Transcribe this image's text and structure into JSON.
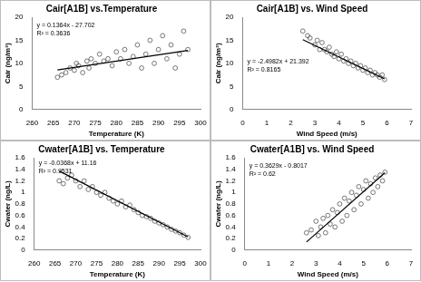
{
  "chart_data": [
    {
      "type": "scatter",
      "title": "Cair[A1B] vs.Temperature",
      "x_label": "Temperature (K)",
      "y_label": "Cair (ng/m³)",
      "annotations": [
        "y = 0.1364x - 27.702",
        "R² = 0.3636"
      ],
      "xlim": [
        260,
        300
      ],
      "xticks": [
        260,
        265,
        270,
        275,
        280,
        285,
        290,
        295,
        300
      ],
      "ylim": [
        0,
        20
      ],
      "yticks": [
        0,
        5,
        10,
        15,
        20
      ],
      "grid": false,
      "series": [
        {
          "type": "scatter",
          "marker": "circle",
          "color": "#555555",
          "x": [
            266,
            267,
            268,
            269,
            270,
            270.5,
            271,
            272,
            273,
            273.5,
            274,
            275,
            276,
            277,
            278,
            279,
            280,
            281,
            282,
            283,
            284,
            285,
            286,
            287,
            288,
            289,
            290,
            291,
            292,
            293,
            294,
            295,
            296,
            297
          ],
          "values": [
            7,
            7.5,
            8,
            9,
            8.5,
            10,
            9.5,
            8,
            10.5,
            9,
            11,
            10,
            12,
            10.5,
            11,
            9.5,
            12.5,
            11,
            13,
            10,
            11.5,
            14,
            9,
            12,
            15,
            10,
            13,
            16,
            11,
            14,
            9,
            12,
            17,
            13
          ]
        },
        {
          "type": "line",
          "line_style": "solid",
          "color": "#000000",
          "x": [
            266,
            297
          ],
          "values": [
            8.58,
            12.81
          ]
        }
      ]
    },
    {
      "type": "scatter",
      "title": "Cair[A1B] vs. Wind Speed",
      "x_label": "Wind Speed (m/s)",
      "y_label": "Cair (ng/m³)",
      "annotations": [
        "y = -2.4982x + 21.392",
        "R² = 0.8165"
      ],
      "xlim": [
        0,
        7
      ],
      "xticks": [
        0,
        1,
        2,
        3,
        4,
        5,
        6,
        7
      ],
      "ylim": [
        0,
        20
      ],
      "yticks": [
        0,
        5,
        10,
        15,
        20
      ],
      "grid": false,
      "series": [
        {
          "type": "scatter",
          "marker": "circle",
          "color": "#555555",
          "x": [
            2.5,
            2.7,
            2.8,
            3.0,
            3.1,
            3.2,
            3.3,
            3.4,
            3.5,
            3.6,
            3.7,
            3.8,
            3.9,
            4.0,
            4.1,
            4.2,
            4.3,
            4.4,
            4.5,
            4.6,
            4.7,
            4.8,
            4.9,
            5.0,
            5.1,
            5.2,
            5.3,
            5.4,
            5.5,
            5.6,
            5.7,
            5.8,
            5.9
          ],
          "values": [
            17,
            16,
            15.5,
            14,
            15,
            13,
            14.5,
            13,
            12.5,
            13.5,
            12,
            11.5,
            12.5,
            11,
            12,
            10.5,
            11,
            10,
            10.5,
            9.5,
            10,
            9,
            9.5,
            8.5,
            9,
            8,
            8.5,
            7.5,
            8,
            7.5,
            7,
            7.5,
            6.5
          ]
        },
        {
          "type": "line",
          "line_style": "solid",
          "color": "#000000",
          "x": [
            2.5,
            5.9
          ],
          "values": [
            15.15,
            6.65
          ]
        }
      ]
    },
    {
      "type": "scatter",
      "title": "Cwater[A1B] vs. Temperature",
      "x_label": "Temperature (K)",
      "y_label": "Cwater (ng/L)",
      "annotations": [
        "y = -0.0368x + 11.16",
        "R² = 0.9531"
      ],
      "xlim": [
        260,
        300
      ],
      "xticks": [
        260,
        265,
        270,
        275,
        280,
        285,
        290,
        295,
        300
      ],
      "ylim": [
        0,
        1.6
      ],
      "yticks": [
        0,
        0.2,
        0.4,
        0.6,
        0.8,
        1,
        1.2,
        1.4,
        1.6
      ],
      "grid": false,
      "series": [
        {
          "type": "scatter",
          "marker": "circle",
          "color": "#555555",
          "x": [
            266,
            267,
            268,
            269,
            270,
            271,
            272,
            273,
            274,
            275,
            276,
            277,
            278,
            279,
            280,
            281,
            282,
            283,
            284,
            285,
            286,
            287,
            288,
            289,
            290,
            291,
            292,
            293,
            294,
            295,
            296,
            297
          ],
          "values": [
            1.2,
            1.15,
            1.25,
            1.3,
            1.2,
            1.1,
            1.2,
            1.05,
            1.1,
            1.0,
            0.95,
            1.0,
            0.9,
            0.85,
            0.8,
            0.85,
            0.75,
            0.78,
            0.7,
            0.65,
            0.6,
            0.58,
            0.55,
            0.5,
            0.47,
            0.44,
            0.4,
            0.36,
            0.33,
            0.3,
            0.26,
            0.22
          ]
        },
        {
          "type": "line",
          "line_style": "solid",
          "color": "#000000",
          "x": [
            266,
            297
          ],
          "values": [
            1.37,
            0.23
          ]
        }
      ]
    },
    {
      "type": "scatter",
      "title": "Cwater[A1B] vs. Wind Speed",
      "x_label": "Wind Speed (m/s)",
      "y_label": "Cwater (ng/L)",
      "annotations": [
        "y = 0.3629x - 0.8017",
        "R² = 0.62"
      ],
      "xlim": [
        0,
        7
      ],
      "xticks": [
        0,
        1,
        2,
        3,
        4,
        5,
        6,
        7
      ],
      "ylim": [
        0,
        1.6
      ],
      "yticks": [
        0,
        0.2,
        0.4,
        0.6,
        0.8,
        1,
        1.2,
        1.4,
        1.6
      ],
      "grid": false,
      "series": [
        {
          "type": "scatter",
          "marker": "circle",
          "color": "#555555",
          "x": [
            2.6,
            2.8,
            3.0,
            3.1,
            3.2,
            3.3,
            3.4,
            3.5,
            3.6,
            3.7,
            3.8,
            3.9,
            4.0,
            4.1,
            4.2,
            4.3,
            4.4,
            4.5,
            4.6,
            4.7,
            4.8,
            4.9,
            5.0,
            5.1,
            5.2,
            5.3,
            5.4,
            5.5,
            5.6,
            5.7,
            5.8,
            5.9
          ],
          "values": [
            0.3,
            0.35,
            0.5,
            0.25,
            0.4,
            0.55,
            0.3,
            0.6,
            0.45,
            0.7,
            0.4,
            0.65,
            0.8,
            0.5,
            0.9,
            0.6,
            0.85,
            1.0,
            0.7,
            0.95,
            1.1,
            0.8,
            1.05,
            1.2,
            0.9,
            1.15,
            1.0,
            1.25,
            1.1,
            1.3,
            1.2,
            1.35
          ]
        },
        {
          "type": "line",
          "line_style": "solid",
          "color": "#000000",
          "x": [
            2.6,
            5.9
          ],
          "values": [
            0.14,
            1.34
          ]
        }
      ]
    }
  ]
}
